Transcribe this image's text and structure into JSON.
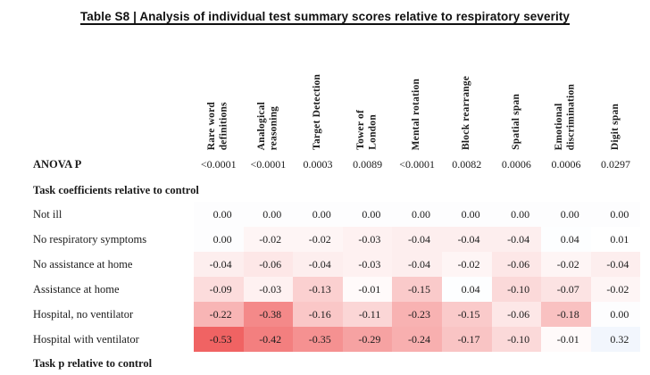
{
  "title": "Table S8 | Analysis of individual test summary scores relative to respiratory severity",
  "table": {
    "columns": [
      "Rare word\ndefinitions",
      "Analogical\nreasoning",
      "Target Detection",
      "Tower of\nLondon",
      "Mental rotation",
      "Block rearrange",
      "Spatial span",
      "Emotional\ndiscrimination",
      "Digit span"
    ],
    "anova_row": {
      "label": "ANOVA P",
      "values": [
        "<0.0001",
        "<0.0001",
        "0.0003",
        "0.0089",
        "<0.0001",
        "0.0082",
        "0.0006",
        "0.0006",
        "0.0297"
      ]
    },
    "section_coefficients": "Task coefficients relative to control",
    "rows": [
      {
        "label": "Not ill",
        "values": [
          "0.00",
          "0.00",
          "0.00",
          "0.00",
          "0.00",
          "0.00",
          "0.00",
          "0.00",
          "0.00"
        ]
      },
      {
        "label": "No respiratory symptoms",
        "values": [
          "0.00",
          "-0.02",
          "-0.02",
          "-0.03",
          "-0.04",
          "-0.04",
          "-0.04",
          "0.04",
          "0.01"
        ]
      },
      {
        "label": "No assistance at home",
        "values": [
          "-0.04",
          "-0.06",
          "-0.04",
          "-0.03",
          "-0.04",
          "-0.02",
          "-0.06",
          "-0.02",
          "-0.04"
        ]
      },
      {
        "label": "Assistance at home",
        "values": [
          "-0.09",
          "-0.03",
          "-0.13",
          "-0.01",
          "-0.15",
          "0.04",
          "-0.10",
          "-0.07",
          "-0.02"
        ]
      },
      {
        "label": "Hospital, no ventilator",
        "values": [
          "-0.22",
          "-0.38",
          "-0.16",
          "-0.11",
          "-0.23",
          "-0.15",
          "-0.06",
          "-0.18",
          "0.00"
        ]
      },
      {
        "label": "Hospital with ventilator",
        "values": [
          "-0.53",
          "-0.42",
          "-0.35",
          "-0.29",
          "-0.24",
          "-0.17",
          "-0.10",
          "-0.01",
          "0.32"
        ]
      }
    ],
    "section_p": "Task p relative to control"
  },
  "heatmap": {
    "negative_color": "#F05E5E",
    "positive_color": "#E9EFFB",
    "zero_color": "#FDFDFE",
    "scale_abs_max": 0.55
  },
  "chart_data": {
    "type": "heatmap",
    "title": "Table S8 | Analysis of individual test summary scores relative to respiratory severity",
    "columns": [
      "Rare word definitions",
      "Analogical reasoning",
      "Target Detection",
      "Tower of London",
      "Mental rotation",
      "Block rearrange",
      "Spatial span",
      "Emotional discrimination",
      "Digit span"
    ],
    "anova_p": [
      "<0.0001",
      "<0.0001",
      "0.0003",
      "0.0089",
      "<0.0001",
      "0.0082",
      "0.0006",
      "0.0006",
      "0.0297"
    ],
    "row_categories": [
      "Not ill",
      "No respiratory symptoms",
      "No assistance at home",
      "Assistance at home",
      "Hospital, no ventilator",
      "Hospital with ventilator"
    ],
    "values": [
      [
        0.0,
        0.0,
        0.0,
        0.0,
        0.0,
        0.0,
        0.0,
        0.0,
        0.0
      ],
      [
        0.0,
        -0.02,
        -0.02,
        -0.03,
        -0.04,
        -0.04,
        -0.04,
        0.04,
        0.01
      ],
      [
        -0.04,
        -0.06,
        -0.04,
        -0.03,
        -0.04,
        -0.02,
        -0.06,
        -0.02,
        -0.04
      ],
      [
        -0.09,
        -0.03,
        -0.13,
        -0.01,
        -0.15,
        0.04,
        -0.1,
        -0.07,
        -0.02
      ],
      [
        -0.22,
        -0.38,
        -0.16,
        -0.11,
        -0.23,
        -0.15,
        -0.06,
        -0.18,
        0.0
      ],
      [
        -0.53,
        -0.42,
        -0.35,
        -0.29,
        -0.24,
        -0.17,
        -0.1,
        -0.01,
        0.32
      ]
    ],
    "color_scale": "white for zero/positive, increasingly red for negative coefficients",
    "legend_position": "none",
    "grid": false
  }
}
